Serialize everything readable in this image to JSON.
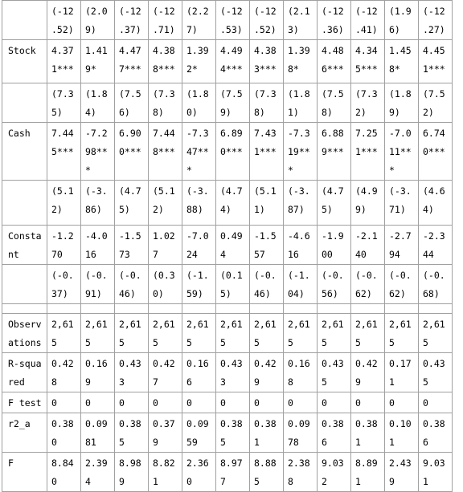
{
  "table": {
    "rows": [
      {
        "label": "",
        "cells": [
          "(-12\n.52)",
          "(2.0\n9)",
          "(-12\n.37)",
          "(-12\n.71)",
          "(2.2\n7)",
          "(-12\n.53)",
          "(-12\n.52)",
          "(2.1\n3)",
          "(-12\n.36)",
          "(-12\n.41)",
          "(1.9\n6)",
          "(-12\n.27)"
        ]
      },
      {
        "label": "Stock",
        "cells": [
          "4.37\n1***",
          "1.41\n9*",
          "4.47\n7***",
          "4.38\n8***",
          "1.39\n2*",
          "4.49\n4***",
          "4.38\n3***",
          "1.39\n8*",
          "4.48\n6***",
          "4.34\n5***",
          "1.45\n8*",
          "4.45\n1***"
        ]
      },
      {
        "label": "",
        "cells": [
          "(7.3\n5)",
          "(1.8\n4)",
          "(7.5\n6)",
          "(7.3\n8)",
          "(1.8\n0)",
          "(7.5\n9)",
          "(7.3\n8)",
          "(1.8\n1)",
          "(7.5\n8)",
          "(7.3\n2)",
          "(1.8\n9)",
          "(7.5\n2)"
        ]
      },
      {
        "label": "Cash",
        "cells": [
          "7.44\n5***",
          "-7.2\n98**\n*",
          "6.90\n0***",
          "7.44\n8***",
          "-7.3\n47**\n*",
          "6.89\n0***",
          "7.43\n1***",
          "-7.3\n19**\n*",
          "6.88\n9***",
          "7.25\n1***",
          "-7.0\n11**\n*",
          "6.74\n0***"
        ]
      },
      {
        "label": "",
        "cells": [
          "(5.1\n2)",
          "(-3.\n86)",
          "(4.7\n5)",
          "(5.1\n2)",
          "(-3.\n88)",
          "(4.7\n4)",
          "(5.1\n1)",
          "(-3.\n87)",
          "(4.7\n5)",
          "(4.9\n9)",
          "(-3.\n71)",
          "(4.6\n4)"
        ]
      },
      {
        "label": "Consta\nnt",
        "cells": [
          "-1.2\n70",
          "-4.0\n16",
          "-1.5\n73",
          "1.02\n7",
          "-7.0\n24",
          "0.49\n4",
          "-1.5\n57",
          "-4.6\n16",
          "-1.9\n00",
          "-2.1\n40",
          "-2.7\n94",
          "-2.3\n44"
        ]
      },
      {
        "label": "",
        "cells": [
          "(-0.\n37)",
          "(-0.\n91)",
          "(-0.\n46)",
          "(0.3\n0)",
          "(-1.\n59)",
          "(0.1\n5)",
          "(-0.\n46)",
          "(-1.\n04)",
          "(-0.\n56)",
          "(-0.\n62)",
          "(-0.\n62)",
          "(-0.\n68)"
        ]
      },
      {
        "label": "",
        "cells": [
          "",
          "",
          "",
          "",
          "",
          "",
          "",
          "",
          "",
          "",
          "",
          ""
        ]
      },
      {
        "label": "Observ\nations",
        "cells": [
          "2,61\n5",
          "2,61\n5",
          "2,61\n5",
          "2,61\n5",
          "2,61\n5",
          "2,61\n5",
          "2,61\n5",
          "2,61\n5",
          "2,61\n5",
          "2,61\n5",
          "2,61\n5",
          "2,61\n5"
        ]
      },
      {
        "label": "R-squa\nred",
        "cells": [
          "0.42\n8",
          "0.16\n9",
          "0.43\n3",
          "0.42\n7",
          "0.16\n6",
          "0.43\n3",
          "0.42\n9",
          "0.16\n8",
          "0.43\n5",
          "0.42\n9",
          "0.17\n1",
          "0.43\n5"
        ]
      },
      {
        "label": "F test",
        "cells": [
          "0",
          "0",
          "0",
          "0",
          "0",
          "0",
          "0",
          "0",
          "0",
          "0",
          "0",
          "0"
        ]
      },
      {
        "label": "r2_a",
        "cells": [
          "0.38\n0",
          "0.09\n81",
          "0.38\n5",
          "0.37\n9",
          "0.09\n59",
          "0.38\n5",
          "0.38\n1",
          "0.09\n78",
          "0.38\n6",
          "0.38\n1",
          "0.10\n1",
          "0.38\n6"
        ]
      },
      {
        "label": "F",
        "cells": [
          "8.84\n0",
          "2.39\n4",
          "8.98\n9",
          "8.82\n1",
          "2.36\n0",
          "8.97\n7",
          "8.88\n5",
          "2.38\n8",
          "9.03\n2",
          "8.89\n1",
          "2.43\n9",
          "9.03\n1"
        ]
      }
    ]
  }
}
